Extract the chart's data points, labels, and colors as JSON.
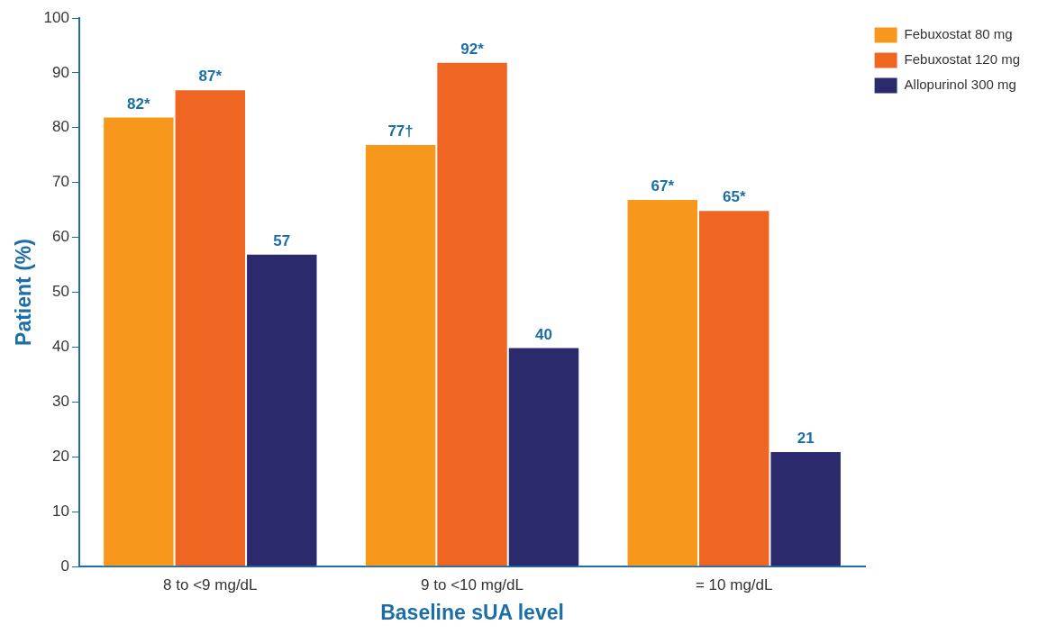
{
  "chart_data": {
    "type": "bar",
    "xlabel": "Baseline sUA level",
    "ylabel": "Patient (%)",
    "categories": [
      "8 to <9 mg/dL",
      "9 to <10 mg/dL",
      "= 10 mg/dL"
    ],
    "series": [
      {
        "name": "Febuxostat 80 mg",
        "color": "#f7981d",
        "values": [
          82,
          77,
          67
        ],
        "value_labels": [
          "82*",
          "77†",
          "67*"
        ]
      },
      {
        "name": "Febuxostat 120 mg",
        "color": "#ef6623",
        "values": [
          87,
          92,
          65
        ],
        "value_labels": [
          "87*",
          "92*",
          "65*"
        ]
      },
      {
        "name": "Allopurinol 300 mg",
        "color": "#2a2a6c",
        "values": [
          57,
          40,
          21
        ],
        "value_labels": [
          "57",
          "40",
          "21"
        ]
      }
    ],
    "ylim": [
      0,
      100
    ],
    "yticks": [
      0,
      10,
      20,
      30,
      40,
      50,
      60,
      70,
      80,
      90,
      100
    ],
    "grid": false,
    "legend": "top right"
  }
}
